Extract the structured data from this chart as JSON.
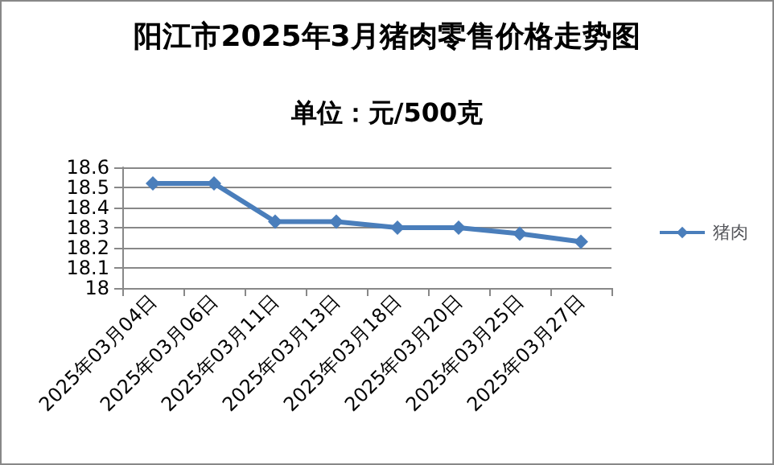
{
  "chart_data": {
    "type": "line",
    "title": "阳江市2025年3月猪肉零售价格走势图",
    "subtitle": "单位：元/500克",
    "categories": [
      "2025年03月04日",
      "2025年03月06日",
      "2025年03月11日",
      "2025年03月13日",
      "2025年03月18日",
      "2025年03月20日",
      "2025年03月25日",
      "2025年03月27日"
    ],
    "series": [
      {
        "name": "猪肉",
        "color": "#4a7ebb",
        "values": [
          18.52,
          18.52,
          18.33,
          18.33,
          18.3,
          18.3,
          18.27,
          18.23
        ]
      }
    ],
    "ylim": [
      18,
      18.6
    ],
    "yticks": [
      18,
      18.1,
      18.2,
      18.3,
      18.4,
      18.5,
      18.6
    ],
    "grid": "y",
    "legend": "right",
    "marker": "diamond",
    "line_style": "solid"
  }
}
